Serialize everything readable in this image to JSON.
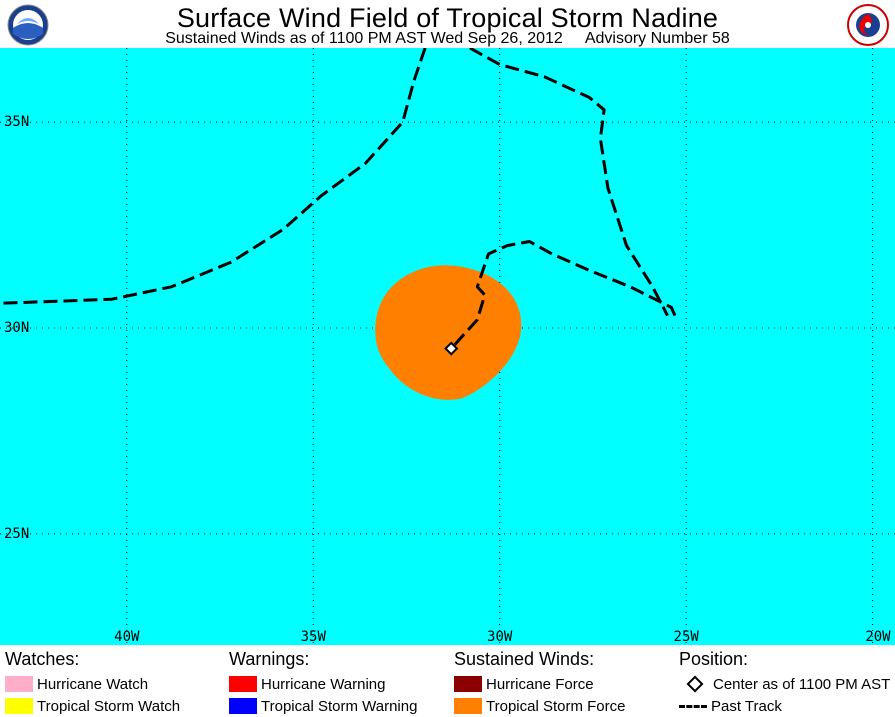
{
  "header": {
    "title": "Surface Wind Field of Tropical Storm Nadine",
    "subtitle": "Sustained Winds as of 1100 PM AST Wed Sep 26, 2012",
    "advisory": "Advisory Number 58",
    "logo_left_text": "NOAA",
    "logo_right_text": "NATIONAL WEATHER SERVICE"
  },
  "map": {
    "background_color": "#00ffff",
    "grid_color": "#000000",
    "lat_labels": [
      "35N",
      "30N",
      "25N"
    ],
    "lon_labels": [
      "40W",
      "35W",
      "30W",
      "25W",
      "20W"
    ],
    "lon_range": [
      -43.4,
      -19.4
    ],
    "lat_range": [
      22.3,
      36.8
    ],
    "wind_field": {
      "category": "Tropical Storm Force",
      "color": "#ff8000"
    },
    "storm_center": {
      "lat": 29.5,
      "lon": -31.3
    },
    "past_track": [
      {
        "lat": 36.8,
        "lon": -32.0
      },
      {
        "lat": 36.0,
        "lon": -32.3
      },
      {
        "lat": 35.0,
        "lon": -32.6
      },
      {
        "lat": 34.0,
        "lon": -33.6
      },
      {
        "lat": 33.2,
        "lon": -34.8
      },
      {
        "lat": 32.4,
        "lon": -35.8
      },
      {
        "lat": 31.6,
        "lon": -37.2
      },
      {
        "lat": 31.0,
        "lon": -38.8
      },
      {
        "lat": 30.7,
        "lon": -40.4
      },
      {
        "lat": 30.6,
        "lon": -43.4
      }
    ],
    "past_track_2": [
      {
        "lat": 36.8,
        "lon": -30.8
      },
      {
        "lat": 36.4,
        "lon": -30.0
      },
      {
        "lat": 36.1,
        "lon": -28.8
      },
      {
        "lat": 35.6,
        "lon": -27.6
      },
      {
        "lat": 35.3,
        "lon": -27.2
      },
      {
        "lat": 34.6,
        "lon": -27.3
      },
      {
        "lat": 33.4,
        "lon": -27.1
      },
      {
        "lat": 32.0,
        "lon": -26.6
      },
      {
        "lat": 31.0,
        "lon": -25.9
      },
      {
        "lat": 30.3,
        "lon": -25.5
      }
    ],
    "past_track_3": [
      {
        "lat": 30.3,
        "lon": -25.3
      },
      {
        "lat": 30.5,
        "lon": -25.4
      },
      {
        "lat": 31.0,
        "lon": -26.5
      },
      {
        "lat": 31.4,
        "lon": -27.6
      },
      {
        "lat": 31.8,
        "lon": -28.6
      },
      {
        "lat": 32.1,
        "lon": -29.2
      },
      {
        "lat": 32.0,
        "lon": -29.8
      },
      {
        "lat": 31.8,
        "lon": -30.3
      },
      {
        "lat": 31.0,
        "lon": -30.6
      },
      {
        "lat": 30.8,
        "lon": -30.4
      },
      {
        "lat": 30.2,
        "lon": -30.6
      },
      {
        "lat": 29.5,
        "lon": -31.3
      }
    ]
  },
  "legend": {
    "watches": {
      "heading": "Watches:",
      "items": [
        {
          "label": "Hurricane Watch",
          "color": "#ffaec9"
        },
        {
          "label": "Tropical Storm Watch",
          "color": "#ffff00"
        }
      ]
    },
    "warnings": {
      "heading": "Warnings:",
      "items": [
        {
          "label": "Hurricane Warning",
          "color": "#ff0000"
        },
        {
          "label": "Tropical Storm Warning",
          "color": "#0000ff"
        }
      ]
    },
    "winds": {
      "heading": "Sustained Winds:",
      "items": [
        {
          "label": "Hurricane Force",
          "color": "#8b0000"
        },
        {
          "label": "Tropical Storm Force",
          "color": "#ff8000"
        }
      ]
    },
    "position": {
      "heading": "Position:",
      "center_label": "Center as of 1100 PM AST",
      "track_label": "Past Track"
    }
  }
}
